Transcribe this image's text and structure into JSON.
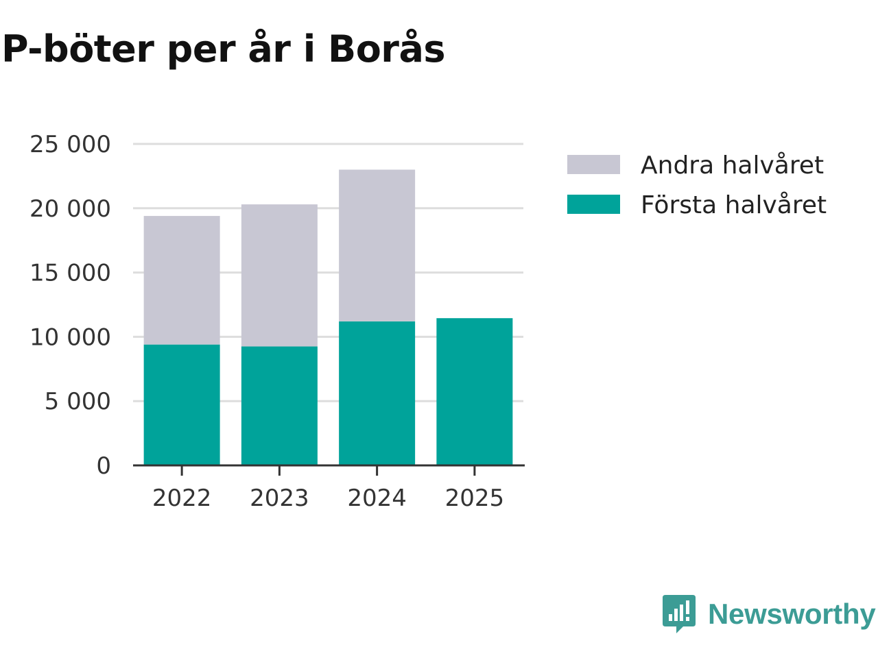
{
  "colors": {
    "first_half": "#00a39a",
    "second_half": "#c8c7d3",
    "grid": "#dddddd",
    "axis": "#333333",
    "brand": "#3c9c95"
  },
  "brand": {
    "name": "Newsworthy",
    "icon": "newsworthy-logo-icon"
  },
  "chart_data": {
    "type": "bar",
    "stacked": true,
    "title": "P-böter per år i Borås",
    "xlabel": "",
    "ylabel": "",
    "categories": [
      "2022",
      "2023",
      "2024",
      "2025"
    ],
    "series": [
      {
        "name": "Första halvåret",
        "color": "#00a39a",
        "values": [
          9400,
          9250,
          11200,
          11450
        ]
      },
      {
        "name": "Andra halvåret",
        "color": "#c8c7d3",
        "values": [
          10000,
          11050,
          11800,
          0
        ]
      }
    ],
    "ylim": [
      0,
      25000
    ],
    "yticks": [
      0,
      5000,
      10000,
      15000,
      20000,
      25000
    ],
    "ytick_labels": [
      "0",
      "5 000",
      "10 000",
      "15 000",
      "20 000",
      "25 000"
    ],
    "grid": true,
    "legend": {
      "position": "top-right",
      "entries": [
        "Andra halvåret",
        "Första halvåret"
      ]
    }
  }
}
